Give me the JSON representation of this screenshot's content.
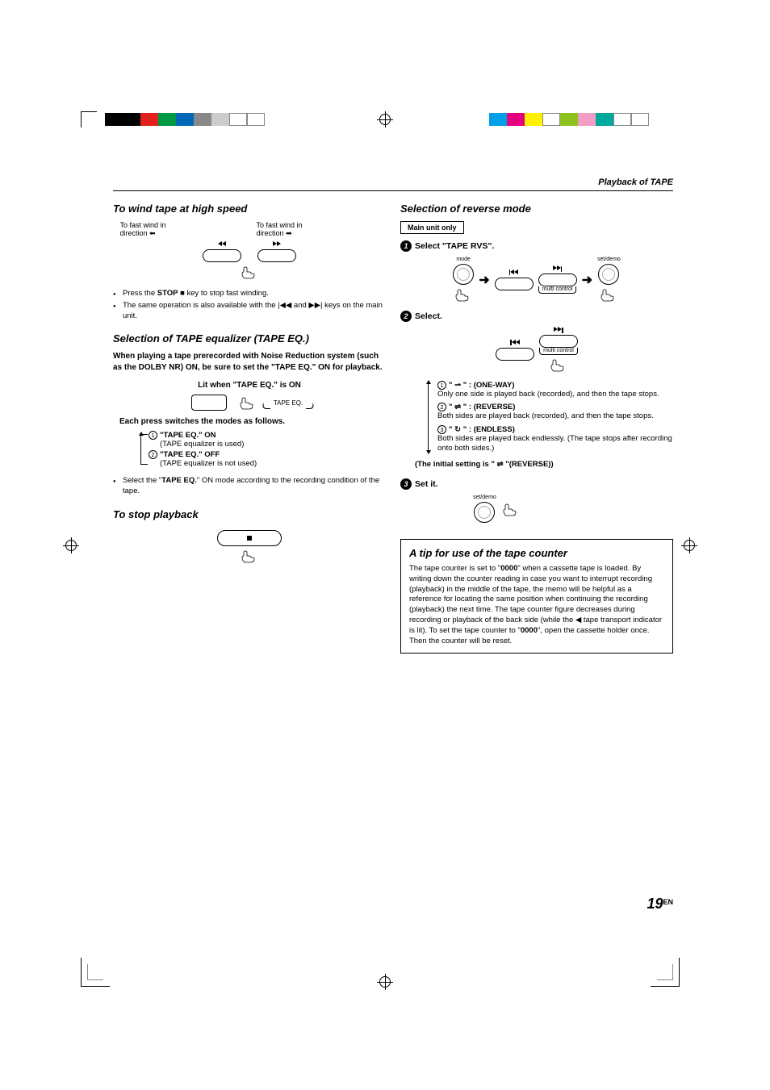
{
  "top_strip_left": [
    "#000000",
    "#000000",
    "#e2211c",
    "#009944",
    "#0068b7",
    "#888888",
    "#cccccc",
    "#ffffff",
    "#ffffff"
  ],
  "top_strip_right": [
    "#00a0e9",
    "#e4007f",
    "#fff100",
    "#ffffff",
    "#8ec31f",
    "#f29ec4",
    "#00a99d",
    "#ffffff",
    "#ffffff"
  ],
  "header": {
    "breadcrumb": "Playback of TAPE"
  },
  "left": {
    "wind": {
      "title": "To wind tape at  high speed",
      "l1": "To fast wind in",
      "l2": "direction ⬅",
      "r1": "To fast wind in",
      "r2": "direction ➡",
      "bullets": [
        "Press the <b>STOP</b> ■ key to stop fast winding.",
        "The same operation is also available with the |◀◀ and ▶▶| keys on the main unit."
      ]
    },
    "eq": {
      "title": "Selection of TAPE equalizer (TAPE EQ.)",
      "note": "When playing a tape prerecorded with Noise Reduction system (such as the DOLBY NR) ON, be sure to set the \"TAPE EQ.\" ON for playback.",
      "lit": "Lit when \"TAPE EQ.\" is ON",
      "indicator": "TAPE EQ.",
      "switches": "Each press switches the modes as follows.",
      "m1_label": "\"TAPE EQ.\" ON",
      "m1_desc": "(TAPE equalizer is used)",
      "m2_label": "\"TAPE EQ.\" OFF",
      "m2_desc": "(TAPE equalizer is not used)",
      "bullet": "Select the \"<b>TAPE EQ.</b>\" ON mode according to the recording condition of the tape."
    },
    "stop": {
      "title": "To stop playback"
    }
  },
  "right": {
    "title": "Selection of reverse mode",
    "main_only": "Main unit only",
    "step1": "Select \"TAPE RVS\".",
    "step2": "Select.",
    "step3": "Set it.",
    "labels": {
      "mode": "mode",
      "setdemo": "set/demo",
      "multi": "multi control"
    },
    "modes": {
      "m1_label": "\"  ⇀  \" : (ONE-WAY)",
      "m1_desc": "Only one side is played back (recorded), and then the tape stops.",
      "m2_label": "\"  ⇌  \" : (REVERSE)",
      "m2_desc": "Both sides are played back (recorded), and then the tape stops.",
      "m3_label": "\"  ↻  \" : (ENDLESS)",
      "m3_desc": "Both sides are played back endlessly. (The tape stops after recording onto both sides.)"
    },
    "initial": "(The initial setting is \" ⇌ \"(REVERSE))",
    "tip": {
      "title": "A tip for use of the tape counter",
      "body": "The tape counter is set to \"<b>0000</b>\" when a cassette tape is loaded. By writing down the counter reading in case you want to interrupt recording (playback) in the middle of the tape, the memo will be helpful as a reference for locating the same position when continuing the recording (playback) the next time. The tape counter figure decreases during recording or playback of the back side (while the ◀ tape transport indicator is lit). To set the tape counter to \"<b>0000</b>\", open the cassette holder once. Then the counter will be reset."
    }
  },
  "page": {
    "num": "19",
    "suffix": "EN"
  }
}
